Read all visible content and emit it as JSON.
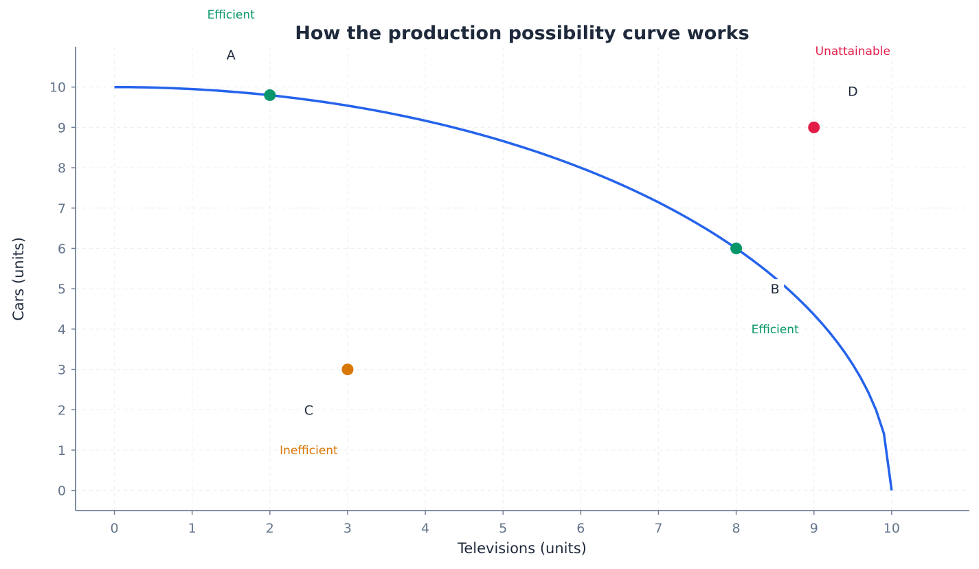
{
  "chart_data": {
    "type": "line",
    "title": "How the production possibility curve works",
    "xlabel": "Televisions (units)",
    "ylabel": "Cars (units)",
    "xlim": [
      -0.5,
      11
    ],
    "ylim": [
      -0.5,
      11
    ],
    "xticks": [
      "0",
      "1",
      "2",
      "3",
      "4",
      "5",
      "6",
      "7",
      "8",
      "9",
      "10"
    ],
    "yticks": [
      "0",
      "1",
      "2",
      "3",
      "4",
      "5",
      "6",
      "7",
      "8",
      "9",
      "10"
    ],
    "grid": true,
    "curve": {
      "equation": "cars = 10 * sqrt(1 - (televisions/10)^2)",
      "x_start": 0,
      "x_end": 10,
      "step": 0.1,
      "color": "#2563eb"
    },
    "points": [
      {
        "label": "A",
        "status": "Efficient",
        "x": 2,
        "y": 9.8,
        "label_x": 1.5,
        "label_y": 10.8,
        "status_x": 1.5,
        "status_y": 11.8,
        "color": "#059669"
      },
      {
        "label": "B",
        "status": "Efficient",
        "x": 8,
        "y": 6,
        "label_x": 8.5,
        "label_y": 5.0,
        "status_x": 8.5,
        "status_y": 4.0,
        "color": "#059669"
      },
      {
        "label": "C",
        "status": "Inefficient",
        "x": 3,
        "y": 3,
        "label_x": 2.5,
        "label_y": 2.0,
        "status_x": 2.5,
        "status_y": 1.0,
        "color": "#d97706"
      },
      {
        "label": "D",
        "status": "Unattainable",
        "x": 9,
        "y": 9,
        "label_x": 9.5,
        "label_y": 9.9,
        "status_x": 9.5,
        "status_y": 10.9,
        "color": "#e11d48"
      }
    ]
  }
}
